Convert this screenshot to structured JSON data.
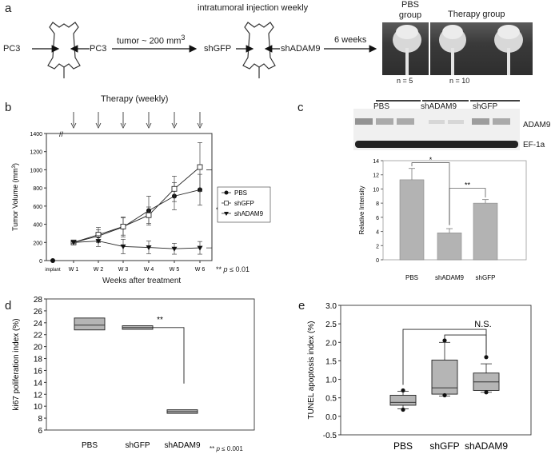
{
  "panel_a": {
    "letter": "a",
    "cell_left": "PC3",
    "cell_right": "PC3",
    "tumor_label": "tumor ~ 200 mm",
    "tumor_sup": "3",
    "injection_title": "intratumoral injection weekly",
    "shgfp": "shGFP",
    "shadam9": "shADAM9",
    "duration": "6 weeks",
    "pbs_group": "PBS\ngroup",
    "pbs_group_l1": "PBS",
    "pbs_group_l2": "group",
    "therapy_group": "Therapy group",
    "n_pbs": "n = 5",
    "n_therapy": "n = 10"
  },
  "panel_b": {
    "letter": "b",
    "therapy_label": "Therapy (weekly)",
    "ylabel": "Tumor Volume (mm",
    "ylabel_sup": "3",
    "ylabel_end": ")",
    "xlabel": "Weeks after treatment",
    "sig": "**",
    "pnote": "** p ≤ 0.01",
    "pnote_stars": "**",
    "pnote_p": "p",
    "pnote_rest": "≤ 0.01",
    "legend": [
      "PBS",
      "shGFP",
      "shADAM9"
    ]
  },
  "panel_c": {
    "letter": "c",
    "blot_groups": [
      "PBS",
      "shADAM9",
      "shGFP"
    ],
    "band_top": "ADAM9",
    "band_bottom": "EF-1a",
    "ylabel": "Relative Intensity",
    "sig1": "*",
    "sig2": "**"
  },
  "panel_d": {
    "letter": "d",
    "ylabel": "ki67 poliferation index (%)",
    "sig": "**",
    "pnote": "** p ≤ 0.001",
    "pnote_stars": "**",
    "pnote_p": "p",
    "pnote_rest": "≤ 0.001"
  },
  "panel_e": {
    "letter": "e",
    "ylabel": "TUNEL apoptosis index (%)",
    "ns": "N.S."
  },
  "chart_data": [
    {
      "id": "b",
      "type": "line",
      "title": "",
      "xlabel": "Weeks after treatment",
      "ylabel": "Tumor Volume (mm3)",
      "categories": [
        "implant",
        "W 1",
        "W 2",
        "W 3",
        "W 4",
        "W 5",
        "W 6"
      ],
      "ylim": [
        0,
        1400
      ],
      "yticks": [
        0,
        200,
        400,
        600,
        800,
        1000,
        1200,
        1400
      ],
      "series": [
        {
          "name": "PBS",
          "marker": "circle-filled",
          "values": [
            0,
            200,
            270,
            370,
            550,
            710,
            780
          ],
          "err": [
            0,
            10,
            70,
            110,
            160,
            150,
            170
          ]
        },
        {
          "name": "shGFP",
          "marker": "square-open",
          "values": [
            0,
            200,
            285,
            375,
            500,
            790,
            1030
          ],
          "err": [
            0,
            10,
            80,
            95,
            90,
            140,
            270
          ]
        },
        {
          "name": "shADAM9",
          "marker": "triangle-down-filled",
          "values": [
            0,
            200,
            215,
            155,
            145,
            130,
            140
          ],
          "err": [
            0,
            10,
            60,
            80,
            70,
            60,
            70
          ]
        }
      ]
    },
    {
      "id": "c",
      "type": "bar",
      "categories": [
        "PBS",
        "shADAM9",
        "shGFP"
      ],
      "values": [
        11.3,
        3.8,
        8.0
      ],
      "err": [
        1.6,
        0.6,
        0.5
      ],
      "ylim": [
        0,
        14
      ],
      "yticks": [
        0,
        2,
        4,
        6,
        8,
        10,
        12,
        14
      ],
      "ylabel": "Relative Intensity"
    },
    {
      "id": "d",
      "type": "box",
      "categories": [
        "PBS",
        "shGFP",
        "shADAM9"
      ],
      "boxes": [
        {
          "q1": 22.8,
          "median": 23.6,
          "q3": 24.8
        },
        {
          "q1": 22.9,
          "median": 23.2,
          "q3": 23.5
        },
        {
          "q1": 8.8,
          "median": 9.1,
          "q3": 9.4
        }
      ],
      "ylim": [
        6,
        28
      ],
      "yticks": [
        6,
        8,
        10,
        12,
        14,
        16,
        18,
        20,
        22,
        24,
        26,
        28
      ],
      "ylabel": "ki67 poliferation index (%)"
    },
    {
      "id": "e",
      "type": "box",
      "categories": [
        "PBS",
        "shGFP",
        "shADAM9"
      ],
      "boxes": [
        {
          "lw": 0.2,
          "q1": 0.3,
          "median": 0.38,
          "q3": 0.57,
          "uw": 0.68,
          "outliers": [
            0.18,
            0.7
          ]
        },
        {
          "lw": 0.55,
          "q1": 0.6,
          "median": 0.77,
          "q3": 1.52,
          "uw": 2.0,
          "outliers": [
            0.57,
            2.05
          ]
        },
        {
          "lw": 0.65,
          "q1": 0.7,
          "median": 0.93,
          "q3": 1.17,
          "uw": 1.42,
          "outliers": [
            0.65,
            1.6
          ]
        }
      ],
      "ylim": [
        -0.5,
        3.0
      ],
      "yticks": [
        -0.5,
        0.0,
        0.5,
        1.0,
        1.5,
        2.0,
        2.5,
        3.0
      ],
      "ylabel": "TUNEL apoptosis index (%)"
    }
  ]
}
